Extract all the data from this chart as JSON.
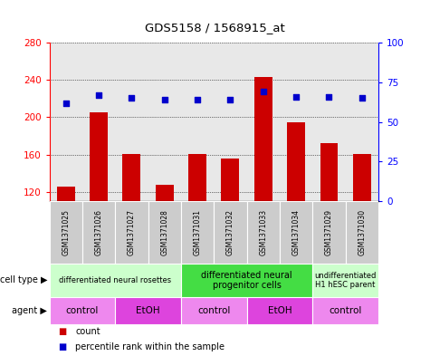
{
  "title": "GDS5158 / 1568915_at",
  "samples": [
    "GSM1371025",
    "GSM1371026",
    "GSM1371027",
    "GSM1371028",
    "GSM1371031",
    "GSM1371032",
    "GSM1371033",
    "GSM1371034",
    "GSM1371029",
    "GSM1371030"
  ],
  "counts": [
    126,
    205,
    161,
    128,
    161,
    156,
    243,
    195,
    172,
    161
  ],
  "percentiles": [
    62,
    67,
    65,
    64,
    64,
    64,
    69,
    66,
    66,
    65
  ],
  "ylim_left": [
    110,
    280
  ],
  "ylim_right": [
    0,
    100
  ],
  "yticks_left": [
    120,
    160,
    200,
    240,
    280
  ],
  "yticks_right": [
    0,
    25,
    50,
    75,
    100
  ],
  "bar_color": "#cc0000",
  "dot_color": "#0000cc",
  "bar_width": 0.55,
  "cell_type_groups": [
    {
      "label": "differentiated neural rosettes",
      "start": 0,
      "end": 3,
      "color": "#ccffcc",
      "fontsize": 6
    },
    {
      "label": "differentiated neural\nprogenitor cells",
      "start": 4,
      "end": 7,
      "color": "#44dd44",
      "fontsize": 7
    },
    {
      "label": "undifferentiated\nH1 hESC parent",
      "start": 8,
      "end": 9,
      "color": "#ccffcc",
      "fontsize": 6
    }
  ],
  "agent_groups": [
    {
      "label": "control",
      "start": 0,
      "end": 1,
      "color": "#ee88ee"
    },
    {
      "label": "EtOH",
      "start": 2,
      "end": 3,
      "color": "#dd44dd"
    },
    {
      "label": "control",
      "start": 4,
      "end": 5,
      "color": "#ee88ee"
    },
    {
      "label": "EtOH",
      "start": 6,
      "end": 7,
      "color": "#dd44dd"
    },
    {
      "label": "control",
      "start": 8,
      "end": 9,
      "color": "#ee88ee"
    }
  ]
}
